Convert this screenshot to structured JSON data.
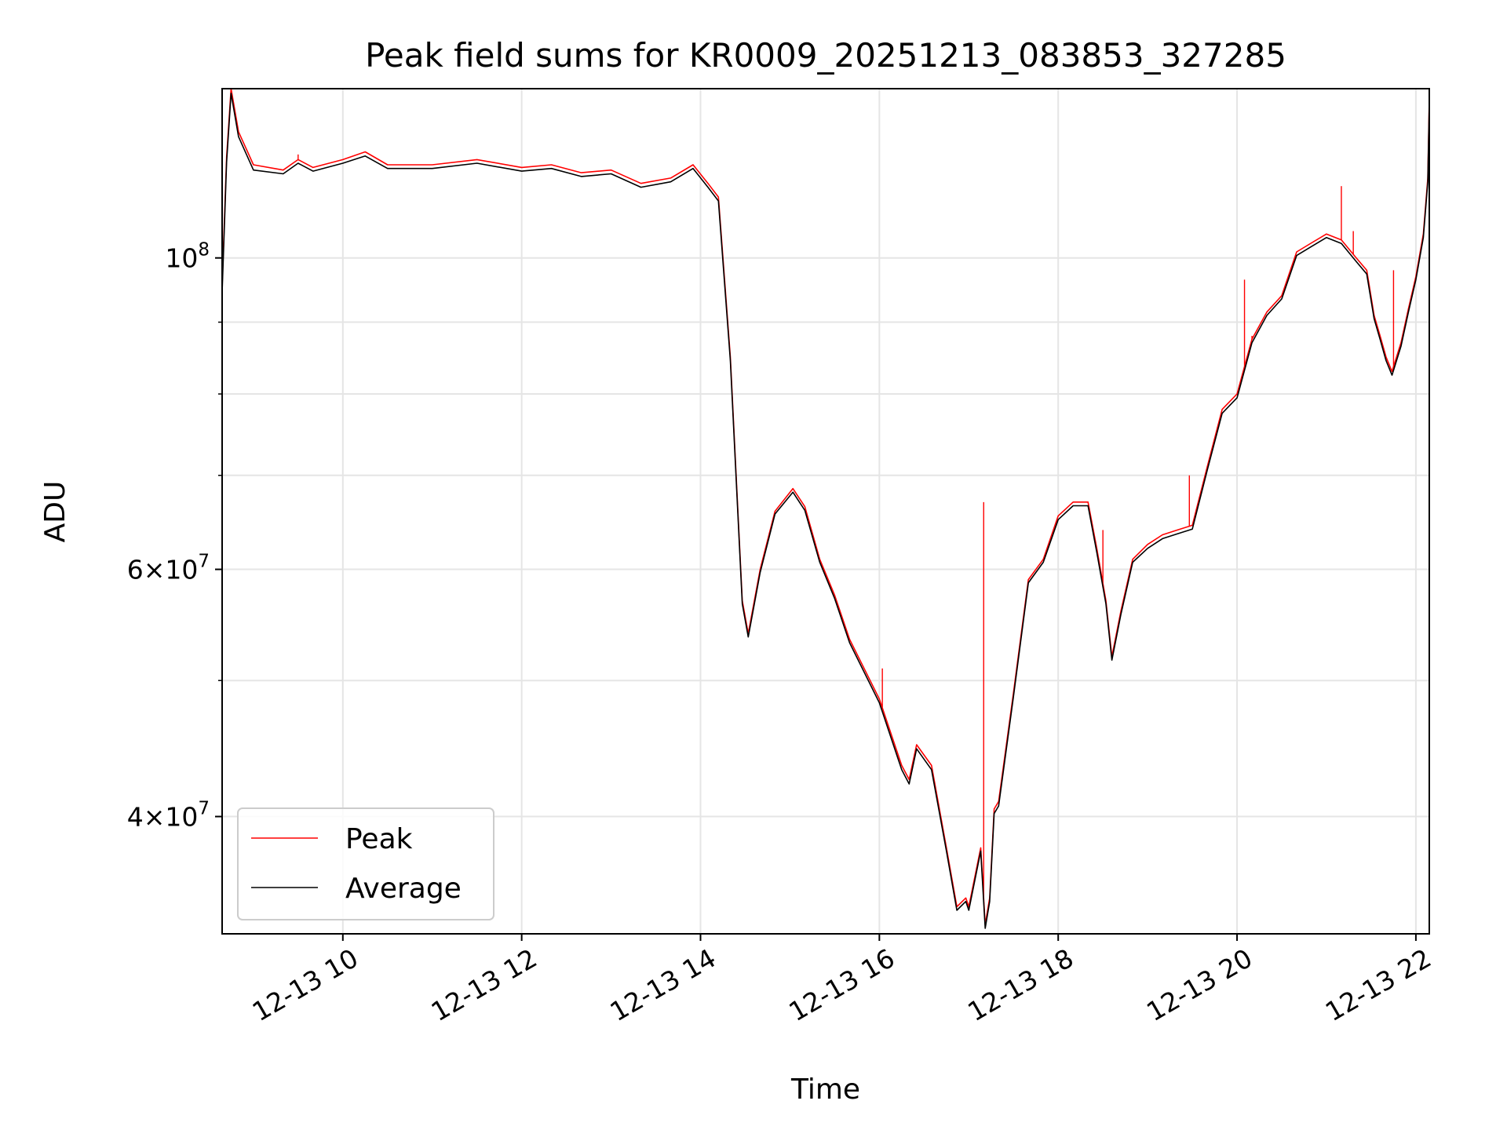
{
  "chart_data": {
    "type": "line",
    "title": "Peak field sums for KR0009_20251213_083853_327285",
    "xlabel": "Time",
    "ylabel": "ADU",
    "yscale": "log",
    "xlim": [
      "2025-12-13 08:39",
      "2025-12-13 22:09"
    ],
    "ylim": [
      33000000,
      132000000
    ],
    "x_ticks": [
      {
        "value": "2025-12-13 10:00",
        "label": "12-13 10"
      },
      {
        "value": "2025-12-13 12:00",
        "label": "12-13 12"
      },
      {
        "value": "2025-12-13 14:00",
        "label": "12-13 14"
      },
      {
        "value": "2025-12-13 16:00",
        "label": "12-13 16"
      },
      {
        "value": "2025-12-13 18:00",
        "label": "12-13 18"
      },
      {
        "value": "2025-12-13 20:00",
        "label": "12-13 20"
      },
      {
        "value": "2025-12-13 22:00",
        "label": "12-13 22"
      }
    ],
    "y_ticks": [
      {
        "value": 40000000,
        "base": "4",
        "exp": "7"
      },
      {
        "value": 60000000,
        "base": "6",
        "exp": "7"
      },
      {
        "value": 100000000,
        "base": "",
        "exp": "8"
      }
    ],
    "y_minor_gridlines": [
      50000000,
      70000000,
      80000000,
      90000000
    ],
    "grid": true,
    "legend_position": "lower-left",
    "series": [
      {
        "name": "Peak",
        "color": "#ff0000",
        "points": [
          [
            "2025-12-13 08:39",
            95500000
          ],
          [
            "2025-12-13 08:42",
            118000000
          ],
          [
            "2025-12-13 08:45",
            132000000
          ],
          [
            "2025-12-13 08:50",
            123000000
          ],
          [
            "2025-12-13 09:00",
            116500000
          ],
          [
            "2025-12-13 09:20",
            115500000
          ],
          [
            "2025-12-13 09:30",
            117500000
          ],
          [
            "2025-12-13 09:40",
            116000000
          ],
          [
            "2025-12-13 10:00",
            117500000
          ],
          [
            "2025-12-13 10:15",
            119000000
          ],
          [
            "2025-12-13 10:30",
            116500000
          ],
          [
            "2025-12-13 11:00",
            116500000
          ],
          [
            "2025-12-13 11:30",
            117500000
          ],
          [
            "2025-12-13 12:00",
            116000000
          ],
          [
            "2025-12-13 12:20",
            116500000
          ],
          [
            "2025-12-13 12:40",
            115000000
          ],
          [
            "2025-12-13 13:00",
            115500000
          ],
          [
            "2025-12-13 13:20",
            113000000
          ],
          [
            "2025-12-13 13:40",
            114000000
          ],
          [
            "2025-12-13 13:55",
            116500000
          ],
          [
            "2025-12-13 14:05",
            113000000
          ],
          [
            "2025-12-13 14:12",
            110500000
          ],
          [
            "2025-12-13 14:20",
            85000000
          ],
          [
            "2025-12-13 14:28",
            57000000
          ],
          [
            "2025-12-13 14:32",
            54000000
          ],
          [
            "2025-12-13 14:40",
            60000000
          ],
          [
            "2025-12-13 14:50",
            66000000
          ],
          [
            "2025-12-13 15:02",
            68500000
          ],
          [
            "2025-12-13 15:10",
            66500000
          ],
          [
            "2025-12-13 15:20",
            61000000
          ],
          [
            "2025-12-13 15:30",
            57500000
          ],
          [
            "2025-12-13 15:40",
            53500000
          ],
          [
            "2025-12-13 16:00",
            48500000
          ],
          [
            "2025-12-13 16:15",
            43500000
          ],
          [
            "2025-12-13 16:20",
            42500000
          ],
          [
            "2025-12-13 16:25",
            45000000
          ],
          [
            "2025-12-13 16:35",
            43500000
          ],
          [
            "2025-12-13 16:45",
            38000000
          ],
          [
            "2025-12-13 16:52",
            34500000
          ],
          [
            "2025-12-13 16:58",
            35000000
          ],
          [
            "2025-12-13 17:00",
            34500000
          ],
          [
            "2025-12-13 17:08",
            38000000
          ],
          [
            "2025-12-13 17:11",
            33500000
          ],
          [
            "2025-12-13 17:14",
            35000000
          ],
          [
            "2025-12-13 17:17",
            40500000
          ],
          [
            "2025-12-13 17:20",
            41000000
          ],
          [
            "2025-12-13 17:30",
            49000000
          ],
          [
            "2025-12-13 17:40",
            59000000
          ],
          [
            "2025-12-13 17:50",
            61000000
          ],
          [
            "2025-12-13 18:00",
            65500000
          ],
          [
            "2025-12-13 18:10",
            67000000
          ],
          [
            "2025-12-13 18:20",
            67000000
          ],
          [
            "2025-12-13 18:26",
            62000000
          ],
          [
            "2025-12-13 18:32",
            57000000
          ],
          [
            "2025-12-13 18:36",
            52000000
          ],
          [
            "2025-12-13 18:42",
            56000000
          ],
          [
            "2025-12-13 18:50",
            61000000
          ],
          [
            "2025-12-13 19:00",
            62500000
          ],
          [
            "2025-12-13 19:10",
            63500000
          ],
          [
            "2025-12-13 19:20",
            64000000
          ],
          [
            "2025-12-13 19:30",
            64500000
          ],
          [
            "2025-12-13 19:40",
            71000000
          ],
          [
            "2025-12-13 19:50",
            78000000
          ],
          [
            "2025-12-13 20:00",
            80000000
          ],
          [
            "2025-12-13 20:10",
            87500000
          ],
          [
            "2025-12-13 20:20",
            91500000
          ],
          [
            "2025-12-13 20:30",
            94000000
          ],
          [
            "2025-12-13 20:40",
            101000000
          ],
          [
            "2025-12-13 20:50",
            102500000
          ],
          [
            "2025-12-13 21:00",
            104000000
          ],
          [
            "2025-12-13 21:10",
            103000000
          ],
          [
            "2025-12-13 21:20",
            100000000
          ],
          [
            "2025-12-13 21:27",
            98000000
          ],
          [
            "2025-12-13 21:32",
            91000000
          ],
          [
            "2025-12-13 21:36",
            88000000
          ],
          [
            "2025-12-13 21:40",
            85000000
          ],
          [
            "2025-12-13 21:44",
            83000000
          ],
          [
            "2025-12-13 21:50",
            87000000
          ],
          [
            "2025-12-13 21:55",
            92000000
          ],
          [
            "2025-12-13 22:00",
            97000000
          ],
          [
            "2025-12-13 22:05",
            104000000
          ],
          [
            "2025-12-13 22:08",
            114000000
          ],
          [
            "2025-12-13 22:09",
            130000000
          ]
        ],
        "spikes": [
          [
            "2025-12-13 09:30",
            118500000
          ],
          [
            "2025-12-13 16:02",
            51000000
          ],
          [
            "2025-12-13 17:10",
            67000000
          ],
          [
            "2025-12-13 18:30",
            64000000
          ],
          [
            "2025-12-13 19:28",
            70000000
          ],
          [
            "2025-12-13 20:05",
            96500000
          ],
          [
            "2025-12-13 20:10",
            88000000
          ],
          [
            "2025-12-13 21:10",
            112500000
          ],
          [
            "2025-12-13 21:18",
            104500000
          ],
          [
            "2025-12-13 21:45",
            98000000
          ]
        ]
      },
      {
        "name": "Average",
        "color": "#000000",
        "points": [
          [
            "2025-12-13 08:39",
            94500000
          ],
          [
            "2025-12-13 08:42",
            117000000
          ],
          [
            "2025-12-13 08:45",
            131000000
          ],
          [
            "2025-12-13 08:50",
            122000000
          ],
          [
            "2025-12-13 09:00",
            115500000
          ],
          [
            "2025-12-13 09:20",
            114800000
          ],
          [
            "2025-12-13 09:30",
            116800000
          ],
          [
            "2025-12-13 09:40",
            115300000
          ],
          [
            "2025-12-13 10:00",
            116800000
          ],
          [
            "2025-12-13 10:15",
            118200000
          ],
          [
            "2025-12-13 10:30",
            115800000
          ],
          [
            "2025-12-13 11:00",
            115800000
          ],
          [
            "2025-12-13 11:30",
            116800000
          ],
          [
            "2025-12-13 12:00",
            115300000
          ],
          [
            "2025-12-13 12:20",
            115800000
          ],
          [
            "2025-12-13 12:40",
            114300000
          ],
          [
            "2025-12-13 13:00",
            114800000
          ],
          [
            "2025-12-13 13:20",
            112300000
          ],
          [
            "2025-12-13 13:40",
            113300000
          ],
          [
            "2025-12-13 13:55",
            115800000
          ],
          [
            "2025-12-13 14:05",
            112300000
          ],
          [
            "2025-12-13 14:12",
            109800000
          ],
          [
            "2025-12-13 14:20",
            84500000
          ],
          [
            "2025-12-13 14:28",
            56700000
          ],
          [
            "2025-12-13 14:32",
            53700000
          ],
          [
            "2025-12-13 14:40",
            59700000
          ],
          [
            "2025-12-13 14:50",
            65700000
          ],
          [
            "2025-12-13 15:02",
            68100000
          ],
          [
            "2025-12-13 15:10",
            66100000
          ],
          [
            "2025-12-13 15:20",
            60700000
          ],
          [
            "2025-12-13 15:30",
            57200000
          ],
          [
            "2025-12-13 15:40",
            53200000
          ],
          [
            "2025-12-13 16:00",
            48200000
          ],
          [
            "2025-12-13 16:15",
            43200000
          ],
          [
            "2025-12-13 16:20",
            42200000
          ],
          [
            "2025-12-13 16:25",
            44700000
          ],
          [
            "2025-12-13 16:35",
            43200000
          ],
          [
            "2025-12-13 16:45",
            37800000
          ],
          [
            "2025-12-13 16:52",
            34300000
          ],
          [
            "2025-12-13 16:58",
            34800000
          ],
          [
            "2025-12-13 17:00",
            34300000
          ],
          [
            "2025-12-13 17:08",
            37800000
          ],
          [
            "2025-12-13 17:11",
            33300000
          ],
          [
            "2025-12-13 17:14",
            34800000
          ],
          [
            "2025-12-13 17:17",
            40200000
          ],
          [
            "2025-12-13 17:20",
            40700000
          ],
          [
            "2025-12-13 17:30",
            48700000
          ],
          [
            "2025-12-13 17:40",
            58700000
          ],
          [
            "2025-12-13 17:50",
            60700000
          ],
          [
            "2025-12-13 18:00",
            65100000
          ],
          [
            "2025-12-13 18:10",
            66600000
          ],
          [
            "2025-12-13 18:20",
            66600000
          ],
          [
            "2025-12-13 18:26",
            61600000
          ],
          [
            "2025-12-13 18:32",
            56700000
          ],
          [
            "2025-12-13 18:36",
            51700000
          ],
          [
            "2025-12-13 18:42",
            55700000
          ],
          [
            "2025-12-13 18:50",
            60700000
          ],
          [
            "2025-12-13 19:00",
            62100000
          ],
          [
            "2025-12-13 19:10",
            63100000
          ],
          [
            "2025-12-13 19:20",
            63600000
          ],
          [
            "2025-12-13 19:30",
            64100000
          ],
          [
            "2025-12-13 19:40",
            70600000
          ],
          [
            "2025-12-13 19:50",
            77500000
          ],
          [
            "2025-12-13 20:00",
            79500000
          ],
          [
            "2025-12-13 20:10",
            87000000
          ],
          [
            "2025-12-13 20:20",
            91000000
          ],
          [
            "2025-12-13 20:30",
            93500000
          ],
          [
            "2025-12-13 20:40",
            100400000
          ],
          [
            "2025-12-13 20:50",
            101900000
          ],
          [
            "2025-12-13 21:00",
            103400000
          ],
          [
            "2025-12-13 21:10",
            102400000
          ],
          [
            "2025-12-13 21:20",
            99400000
          ],
          [
            "2025-12-13 21:27",
            97400000
          ],
          [
            "2025-12-13 21:32",
            90500000
          ],
          [
            "2025-12-13 21:36",
            87500000
          ],
          [
            "2025-12-13 21:40",
            84500000
          ],
          [
            "2025-12-13 21:44",
            82500000
          ],
          [
            "2025-12-13 21:50",
            86500000
          ],
          [
            "2025-12-13 21:55",
            91500000
          ],
          [
            "2025-12-13 22:00",
            96500000
          ],
          [
            "2025-12-13 22:05",
            103400000
          ],
          [
            "2025-12-13 22:08",
            113300000
          ],
          [
            "2025-12-13 22:09",
            129000000
          ]
        ]
      }
    ]
  }
}
